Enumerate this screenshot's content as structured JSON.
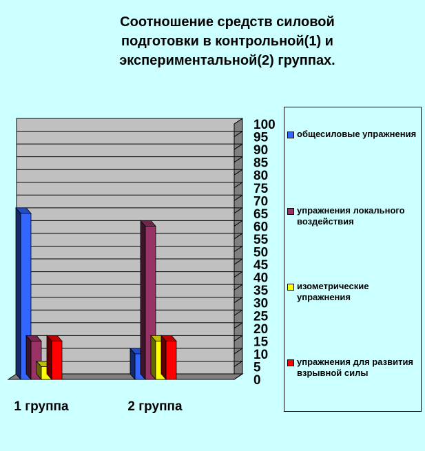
{
  "chart_data": {
    "type": "bar",
    "title": "Соотношение средств силовой\nподготовки в контрольной(1)  и\nэкспериментальной(2) группах.",
    "categories": [
      "1 группа",
      "2 группа"
    ],
    "series": [
      {
        "name": "общесиловые упражнения",
        "values": [
          65,
          10
        ],
        "color": "#3366ff"
      },
      {
        "name": " упражнения локального воздействия",
        "values": [
          15,
          60
        ],
        "color": "#993366"
      },
      {
        "name": "изометрические упражнения",
        "values": [
          5,
          15
        ],
        "color": "#ffff00"
      },
      {
        "name": "упражнения для развития взрывной силы",
        "values": [
          15,
          15
        ],
        "color": "#ff0000"
      }
    ],
    "ylim": [
      0,
      100
    ],
    "yticks": [
      0,
      5,
      10,
      15,
      20,
      25,
      30,
      35,
      40,
      45,
      50,
      55,
      60,
      65,
      70,
      75,
      80,
      85,
      90,
      95,
      100
    ],
    "grid": true,
    "legend_position": "right"
  },
  "legend": {
    "items": [
      {
        "label": "общесиловые упражнения",
        "color": "#3366ff"
      },
      {
        "label": " упражнения локального воздействия",
        "color": "#993366"
      },
      {
        "label": "изометрические упражнения",
        "color": "#ffff00"
      },
      {
        "label": "упражнения для развития взрывной силы",
        "color": "#ff0000"
      }
    ]
  }
}
